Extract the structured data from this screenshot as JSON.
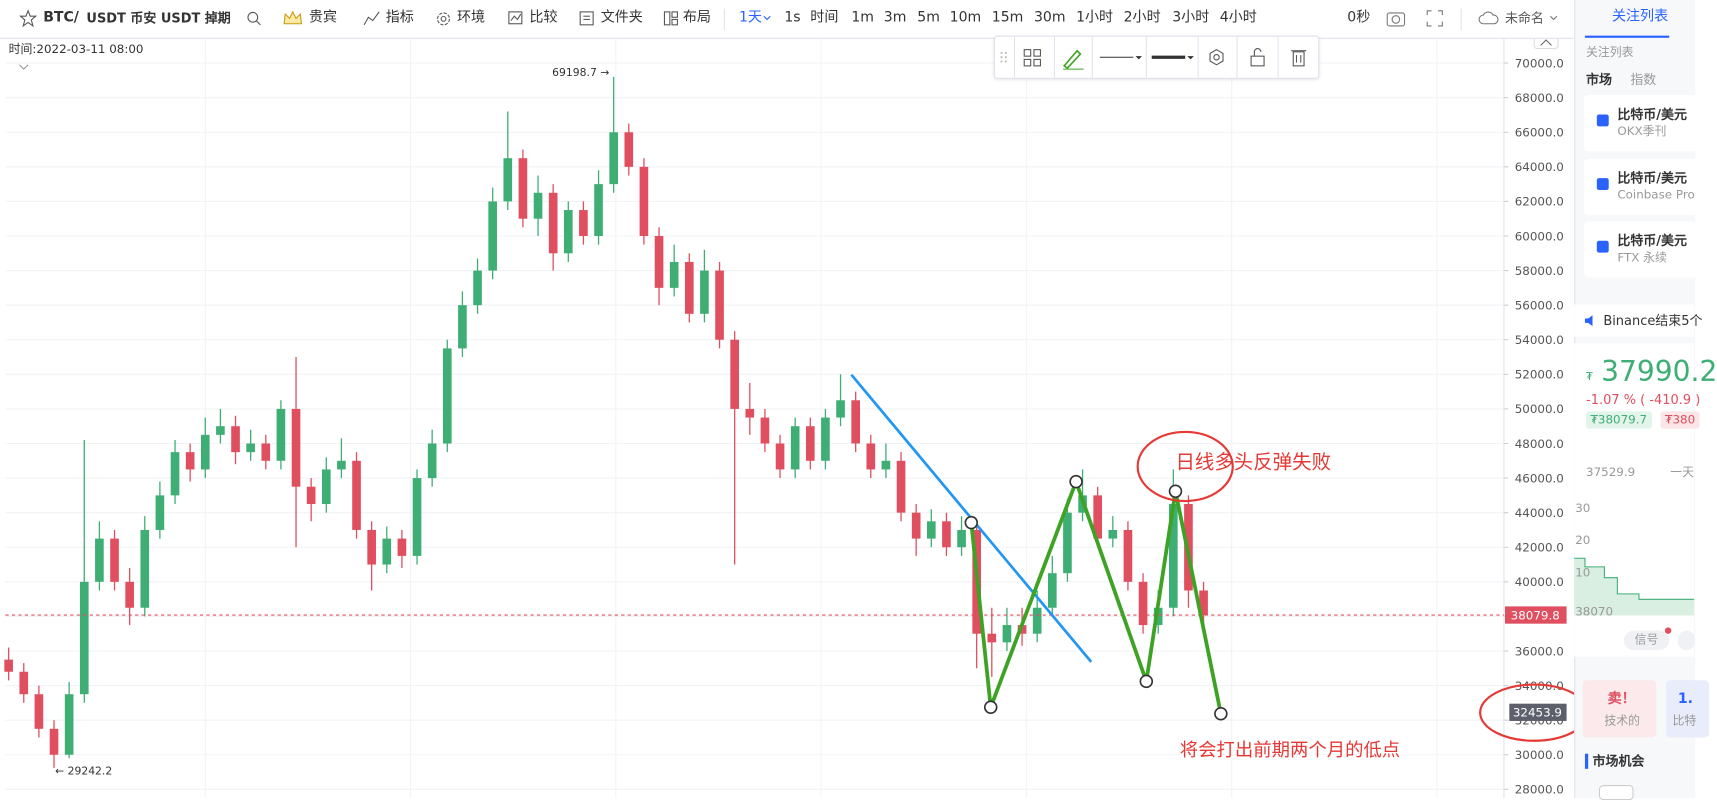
{
  "toolbar": {
    "symbol": "BTC/",
    "market": "USDT 币安 USDT 掉期",
    "vip": "贵宾",
    "indicators": "指标",
    "environment": "环境",
    "compare": "比较",
    "folder": "文件夹",
    "layout": "布局",
    "active_interval": "1天",
    "intervals": [
      "1s",
      "时间",
      "1m",
      "3m",
      "5m",
      "10m",
      "15m",
      "30m",
      "1小时",
      "2小时",
      "3小时",
      "4小时"
    ],
    "countdown": "0秒",
    "layout_name": "未命名"
  },
  "chart_data": {
    "type": "candlestick",
    "info": "时间:2022-03-11 08:00",
    "up_color": "#3fae75",
    "down_color": "#e04f5f",
    "candles": [
      [
        35500,
        36200,
        34300,
        34800
      ],
      [
        34800,
        35300,
        33000,
        33500
      ],
      [
        33500,
        34000,
        31000,
        31500
      ],
      [
        31500,
        32000,
        29242.2,
        30000
      ],
      [
        30000,
        34200,
        29800,
        33500
      ],
      [
        33500,
        48200,
        33000,
        40000
      ],
      [
        40000,
        43500,
        39500,
        42500
      ],
      [
        42500,
        43000,
        39500,
        40000
      ],
      [
        40000,
        40800,
        37500,
        38500
      ],
      [
        38500,
        43800,
        38000,
        43000
      ],
      [
        43000,
        45800,
        42500,
        45000
      ],
      [
        45000,
        48200,
        44500,
        47500
      ],
      [
        47500,
        48000,
        45800,
        46500
      ],
      [
        46500,
        49500,
        46000,
        48500
      ],
      [
        48500,
        50000,
        48000,
        49000
      ],
      [
        49000,
        49600,
        46800,
        47500
      ],
      [
        47500,
        48800,
        47000,
        48000
      ],
      [
        48000,
        48500,
        46500,
        47000
      ],
      [
        47000,
        50500,
        46500,
        50000
      ],
      [
        50000,
        53000,
        42000,
        45500
      ],
      [
        45500,
        46000,
        43500,
        44500
      ],
      [
        44500,
        47200,
        44000,
        46500
      ],
      [
        46500,
        48300,
        46000,
        47000
      ],
      [
        47000,
        47500,
        42500,
        43000
      ],
      [
        43000,
        43500,
        39500,
        41000
      ],
      [
        41000,
        43200,
        40500,
        42500
      ],
      [
        42500,
        43000,
        40800,
        41500
      ],
      [
        41500,
        46500,
        41000,
        46000
      ],
      [
        46000,
        48800,
        45500,
        48000
      ],
      [
        48000,
        54000,
        47500,
        53500
      ],
      [
        53500,
        56800,
        53000,
        56000
      ],
      [
        56000,
        58700,
        55500,
        58000
      ],
      [
        58000,
        62800,
        57500,
        62000
      ],
      [
        62000,
        67200,
        61500,
        64500
      ],
      [
        64500,
        65000,
        60500,
        61000
      ],
      [
        61000,
        63500,
        60000,
        62500
      ],
      [
        62500,
        63000,
        58000,
        59000
      ],
      [
        59000,
        62000,
        58500,
        61500
      ],
      [
        61500,
        62000,
        59500,
        60000
      ],
      [
        60000,
        63800,
        59500,
        63000
      ],
      [
        63000,
        69198.7,
        62500,
        66000
      ],
      [
        66000,
        66500,
        63500,
        64000
      ],
      [
        64000,
        64500,
        59500,
        60000
      ],
      [
        60000,
        60500,
        56000,
        57000
      ],
      [
        57000,
        59500,
        56500,
        58500
      ],
      [
        58500,
        59000,
        55000,
        55500
      ],
      [
        55500,
        59200,
        55000,
        58000
      ],
      [
        58000,
        58500,
        53500,
        54000
      ],
      [
        54000,
        54500,
        41000,
        50000
      ],
      [
        50000,
        51500,
        48500,
        49500
      ],
      [
        49500,
        50000,
        47500,
        48000
      ],
      [
        48000,
        48500,
        46000,
        46500
      ],
      [
        46500,
        49500,
        46000,
        49000
      ],
      [
        49000,
        49500,
        46500,
        47000
      ],
      [
        47000,
        50000,
        46500,
        49500
      ],
      [
        49500,
        52000,
        49000,
        50500
      ],
      [
        50500,
        51000,
        47500,
        48000
      ],
      [
        48000,
        48500,
        46000,
        46500
      ],
      [
        46500,
        48000,
        46000,
        47000
      ],
      [
        47000,
        47500,
        43500,
        44000
      ],
      [
        44000,
        44500,
        41500,
        42500
      ],
      [
        42500,
        44200,
        42000,
        43500
      ],
      [
        43500,
        44000,
        41500,
        42000
      ],
      [
        42000,
        43800,
        41500,
        43000
      ],
      [
        43000,
        43500,
        35000,
        37000
      ],
      [
        37000,
        38500,
        34500,
        36500
      ],
      [
        36500,
        38500,
        36000,
        37500
      ],
      [
        37500,
        38500,
        36300,
        37000
      ],
      [
        37000,
        39500,
        36500,
        38500
      ],
      [
        38500,
        41500,
        38000,
        40500
      ],
      [
        40500,
        44800,
        40000,
        44000
      ],
      [
        44000,
        46500,
        43500,
        45000
      ],
      [
        45000,
        45500,
        42000,
        42500
      ],
      [
        42500,
        43800,
        42000,
        43000
      ],
      [
        43000,
        43500,
        39500,
        40000
      ],
      [
        40000,
        40500,
        37000,
        37500
      ],
      [
        37500,
        39500,
        37000,
        38500
      ],
      [
        38500,
        46500,
        38000,
        44500
      ],
      [
        44500,
        45000,
        38500,
        39500
      ],
      [
        39500,
        40000,
        37500,
        38079.8
      ]
    ],
    "ylim": [
      27500,
      71400
    ],
    "yticks": [
      {
        "value": 28000,
        "label": "28000.0"
      },
      {
        "value": 30000,
        "label": "30000.0"
      },
      {
        "value": 32000,
        "label": "32000.0"
      },
      {
        "value": 34000,
        "label": "34000.0"
      },
      {
        "value": 36000,
        "label": "36000.0"
      },
      {
        "value": 38000,
        "label": "38000.0"
      },
      {
        "value": 40000,
        "label": "40000.0"
      },
      {
        "value": 42000,
        "label": "42000.0"
      },
      {
        "value": 44000,
        "label": "44000.0"
      },
      {
        "value": 46000,
        "label": "46000.0"
      },
      {
        "value": 48000,
        "label": "48000.0"
      },
      {
        "value": 50000,
        "label": "50000.0"
      },
      {
        "value": 52000,
        "label": "52000.0"
      },
      {
        "value": 54000,
        "label": "54000.0"
      },
      {
        "value": 56000,
        "label": "56000.0"
      },
      {
        "value": 58000,
        "label": "58000.0"
      },
      {
        "value": 60000,
        "label": "60000.0"
      },
      {
        "value": 62000,
        "label": "62000.0"
      },
      {
        "value": 64000,
        "label": "64000.0"
      },
      {
        "value": 66000,
        "label": "66000.0"
      },
      {
        "value": 68000,
        "label": "68000.0"
      },
      {
        "value": 70000,
        "label": "70000.0"
      }
    ],
    "grid": true,
    "high_label": {
      "value": 69198.7,
      "label": "69198.7 →"
    },
    "low_label": {
      "value": 29242.2,
      "label": "← 29242.2"
    },
    "last_price": {
      "value": 38079.8,
      "label": "38079.8",
      "color": "#e04f5f"
    },
    "marker_price": {
      "value": 32453.9,
      "label": "32453.9",
      "color": "#5d606b"
    },
    "annotations": [
      "日线多头反弹失败",
      "将会打出前期两个月的低点"
    ]
  },
  "sidebar": {
    "tab": "关注列表",
    "section": "关注列表",
    "filters": [
      "市场",
      "指数"
    ],
    "watchlist": [
      {
        "name": "比特币/美元",
        "source": "OKX季刊"
      },
      {
        "name": "比特币/美元",
        "source": "Coinbase Pro"
      },
      {
        "name": "比特币/美元",
        "source": "FTX 永续"
      }
    ],
    "news": "Binance结束5个",
    "currency": "₮",
    "price": "37990.2",
    "change": "-1.07 % ( -410.9 )",
    "bid": "₮38079.7",
    "ask": "₮380",
    "low_value": "37529.9",
    "period": "一天",
    "mini_axis": [
      "30",
      "20",
      "10",
      "38070"
    ],
    "signal": "信号",
    "card_sell": "卖！",
    "card_sell_sub": "技术的",
    "card_next": "1.",
    "card_next_sub": "比特",
    "opportunities": "市场机会"
  }
}
